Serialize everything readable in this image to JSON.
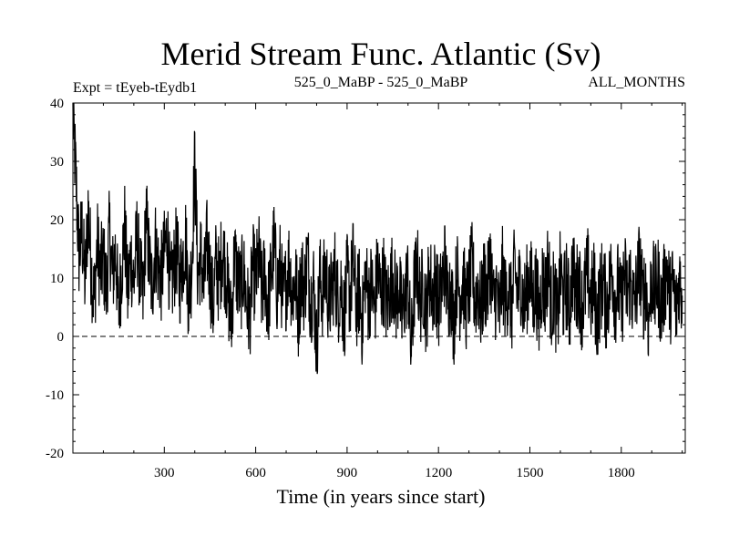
{
  "chart_data": {
    "type": "line",
    "title": "Merid Stream Func. Atlantic (Sv)",
    "subtitle_left": "Expt = tEyeb-tEydb1",
    "subtitle_center": "525_0_MaBP - 525_0_MaBP",
    "subtitle_right": "ALL_MONTHS",
    "xlabel": "Time (in years since start)",
    "ylabel": "",
    "xlim": [
      0,
      2010
    ],
    "ylim": [
      -20,
      40
    ],
    "x_ticks": [
      300,
      600,
      900,
      1200,
      1500,
      1800
    ],
    "y_ticks": [
      -20,
      -10,
      0,
      10,
      20,
      30,
      40
    ],
    "zero_line": true,
    "grid": false,
    "line_color": "#000000",
    "series": [
      {
        "x_start": 0,
        "x_step": 10,
        "values": [
          38,
          27,
          14,
          18,
          9,
          22,
          12,
          6,
          16,
          11,
          13,
          8,
          18,
          10,
          15,
          4,
          12,
          19,
          7,
          14,
          9,
          17,
          11,
          6,
          21,
          13,
          8,
          16,
          12,
          10,
          14,
          18,
          7,
          11,
          15,
          9,
          13,
          17,
          6,
          12,
          30,
          10,
          14,
          8,
          16,
          11,
          5,
          13,
          9,
          15,
          12,
          7,
          2,
          14,
          10,
          8,
          11,
          6,
          3,
          12,
          9,
          14,
          7,
          11,
          5,
          10,
          16,
          8,
          12,
          6,
          9,
          13,
          7,
          10,
          4,
          11,
          8,
          14,
          6,
          9,
          -2,
          10,
          7,
          12,
          5,
          8,
          11,
          6,
          9,
          3,
          10,
          7,
          13,
          5,
          8,
          2,
          11,
          6,
          9,
          4,
          12,
          7,
          10,
          5,
          8,
          11,
          6,
          9,
          3,
          7,
          10,
          -3,
          8,
          12,
          6,
          9,
          4,
          11,
          7,
          10,
          5,
          8,
          13,
          6,
          9,
          2,
          11,
          7,
          10,
          5,
          8,
          12,
          6,
          9,
          4,
          10,
          7,
          14,
          5,
          8,
          3,
          11,
          6,
          9,
          4,
          12,
          7,
          10,
          5,
          8,
          11,
          6,
          9,
          3,
          10,
          7,
          13,
          5,
          8,
          2,
          11,
          6,
          9,
          4,
          12,
          7,
          10,
          5,
          8,
          11,
          6,
          9,
          3,
          7,
          10,
          5,
          8,
          12,
          6,
          9,
          4,
          11,
          7,
          10,
          5,
          8,
          13,
          6,
          9,
          2,
          11,
          7,
          10,
          5,
          8,
          12,
          6,
          9,
          4,
          10,
          7
        ]
      }
    ]
  }
}
